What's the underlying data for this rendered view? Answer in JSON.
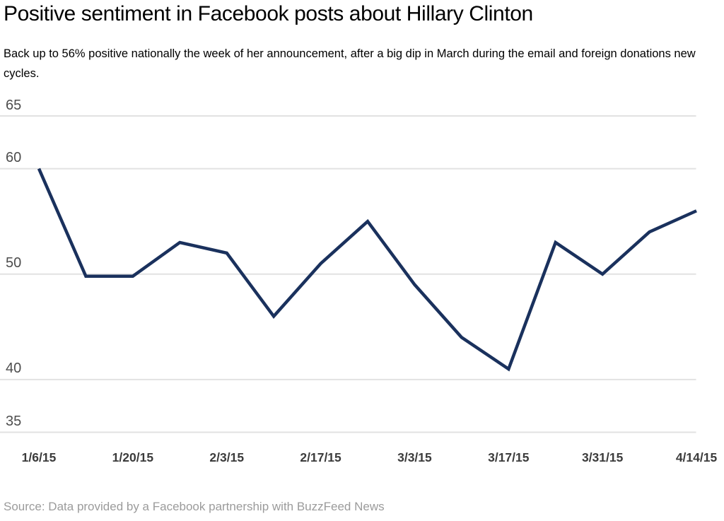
{
  "header": {
    "title": "Positive sentiment in Facebook posts about Hillary Clinton",
    "subtitle": "Back up to 56% positive nationally the week of her announcement, after a big dip in March during the email and foreign donations new cycles."
  },
  "footer": {
    "source": "Source: Data provided by a Facebook partnership with BuzzFeed News"
  },
  "colors": {
    "line": "#1a315d",
    "gridline": "#e2e2e2",
    "y_label": "#4d4d4d",
    "x_label": "#3b3b3b",
    "source_text": "#9b9b9b",
    "background": "#ffffff"
  },
  "chart_data": {
    "type": "line",
    "title": "Positive sentiment in Facebook posts about Hillary Clinton",
    "subtitle": "Back up to 56% positive nationally the week of her announcement, after a big dip in March during the email and foreign donations new cycles.",
    "series_name": "Positive sentiment (%)",
    "categories": [
      "1/6/15",
      "1/13/15",
      "1/20/15",
      "1/27/15",
      "2/3/15",
      "2/10/15",
      "2/17/15",
      "2/24/15",
      "3/3/15",
      "3/10/15",
      "3/17/15",
      "3/24/15",
      "3/31/15",
      "4/7/15",
      "4/14/15"
    ],
    "values": [
      60,
      49.8,
      49.8,
      53,
      52,
      46,
      51,
      55,
      49,
      44,
      41,
      53,
      50,
      54,
      56
    ],
    "x_tick_labels": [
      "1/6/15",
      "1/20/15",
      "2/3/15",
      "2/17/15",
      "3/3/15",
      "3/17/15",
      "3/31/15",
      "4/14/15"
    ],
    "y_ticks": [
      35,
      40,
      50,
      60,
      65
    ],
    "ylim": [
      35,
      65
    ],
    "xlabel": "",
    "ylabel": "",
    "grid": "horizontal-only",
    "legend": "none",
    "line_color": "#1a315d",
    "source": "Source: Data provided by a Facebook partnership with BuzzFeed News"
  }
}
